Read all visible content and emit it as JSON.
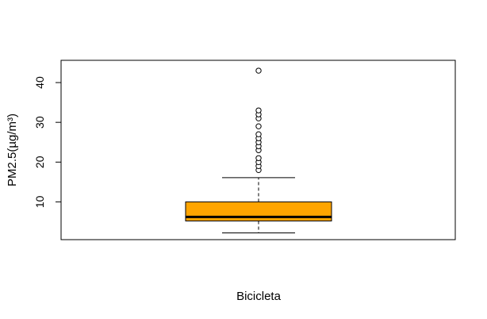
{
  "chart_data": {
    "type": "box",
    "title": "",
    "xlabel": "Bicicleta",
    "ylabel": "PM2.5(µg/m³)",
    "ylim": [
      0.5,
      45.6
    ],
    "y_ticks": [
      10,
      20,
      30,
      40
    ],
    "grid": false,
    "box_color": "#FFA500",
    "series": [
      {
        "whisker_low": 2.2,
        "q1": 5.2,
        "median": 6.2,
        "q3": 10.0,
        "whisker_high": 16.1,
        "outliers": [
          18.0,
          19.0,
          20.0,
          21.0,
          23.0,
          24.0,
          25.0,
          26.0,
          27.0,
          29.0,
          31.0,
          32.0,
          33.0,
          43.0
        ]
      }
    ]
  }
}
